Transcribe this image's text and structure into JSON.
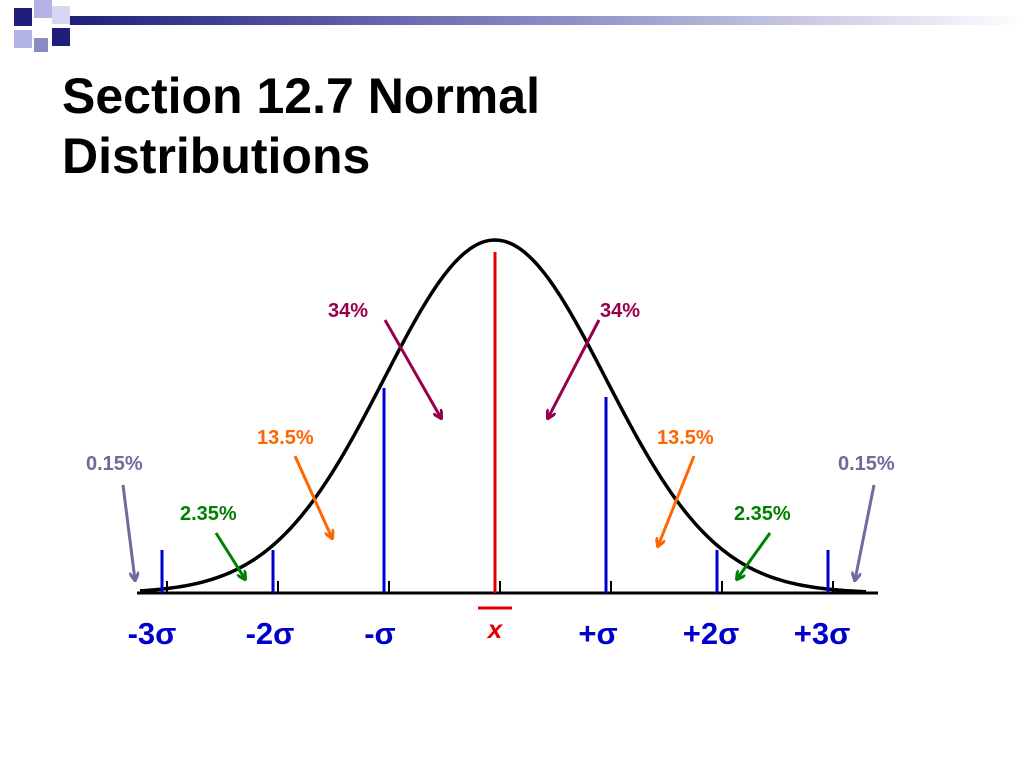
{
  "slide": {
    "title_line1": "Section 12.7 Normal",
    "title_line2": "Distributions"
  },
  "colors": {
    "curve": "#000000",
    "mean_line": "#e00000",
    "sigma_lines": "#0000cc",
    "pct_34": "#99004c",
    "pct_13_5": "#ff6600",
    "pct_2_35": "#008000",
    "pct_0_15": "#6b6b9e",
    "deco_navy": "#1f1f7a",
    "deco_lavender": "#b3b3e6"
  },
  "percent_labels": {
    "left_34": "34%",
    "right_34": "34%",
    "left_13_5": "13.5%",
    "right_13_5": "13.5%",
    "left_2_35": "2.35%",
    "right_2_35": "2.35%",
    "left_0_15": "0.15%",
    "right_0_15": "0.15%"
  },
  "sigma_labels": {
    "minus3": "-3σ",
    "minus2": "-2σ",
    "minus1": "-σ",
    "mean": "x",
    "plus1": "+σ",
    "plus2": "+2σ",
    "plus3": "+3σ"
  }
}
